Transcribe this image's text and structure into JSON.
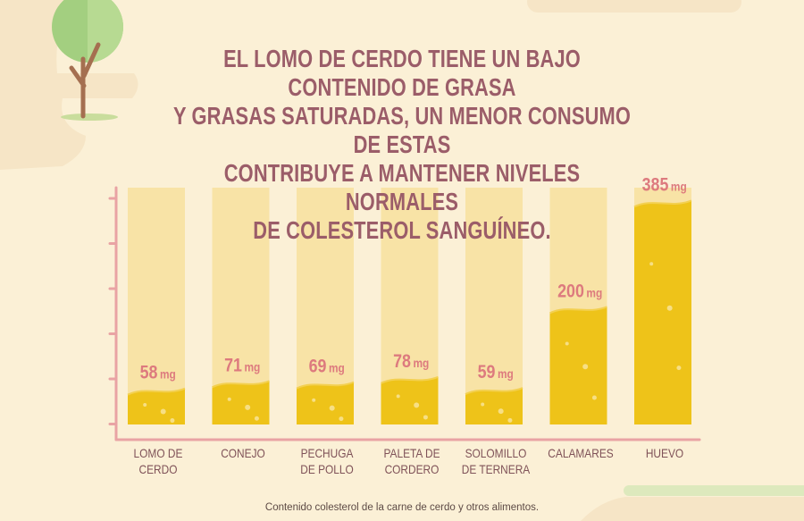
{
  "headline": {
    "lines": [
      "EL LOMO DE CERDO TIENE UN BAJO CONTENIDO DE GRASA",
      "Y GRASAS SATURADAS, UN MENOR CONSUMO DE ESTAS",
      "CONTRIBUYE A MANTENER NIVELES NORMALES",
      "DE COLESTEROL SANGUÍNEO."
    ]
  },
  "chart_data": {
    "type": "bar",
    "title": "EL LOMO DE CERDO TIENE UN BAJO CONTENIDO DE GRASA Y GRASAS SATURADAS, UN MENOR CONSUMO DE ESTAS CONTRIBUYE A MANTENER NIVELES NORMALES DE COLESTEROL SANGUÍNEO.",
    "categories": [
      [
        "LOMO DE",
        "CERDO"
      ],
      [
        "CONEJO"
      ],
      [
        "PECHUGA",
        "DE POLLO"
      ],
      [
        "PALETA DE",
        "CORDERO"
      ],
      [
        "SOLOMILLO",
        "DE TERNERA"
      ],
      [
        "CALAMARES"
      ],
      [
        "HUEVO"
      ]
    ],
    "values": [
      58,
      71,
      69,
      78,
      59,
      200,
      385
    ],
    "value_labels": [
      "58",
      "71",
      "69",
      "78",
      "59",
      "200",
      "385"
    ],
    "unit": "mg",
    "xlabel": "",
    "ylabel": "",
    "ylim": [
      0,
      400
    ],
    "grid": false,
    "caption": "Contenido colesterol de la carne de cerdo y otros alimentos."
  },
  "colors": {
    "background": "#fbf0d6",
    "track": "#f8e3a6",
    "bar": "#eec319",
    "wave": "#f3d050",
    "bubble": "#f7df85",
    "axis": "#e9a3a4",
    "value_text": "#dd7a7e",
    "headline_text": "#9b5d69",
    "tree_leaf": "#a3cf80",
    "tree_trunk": "#a56f50"
  }
}
